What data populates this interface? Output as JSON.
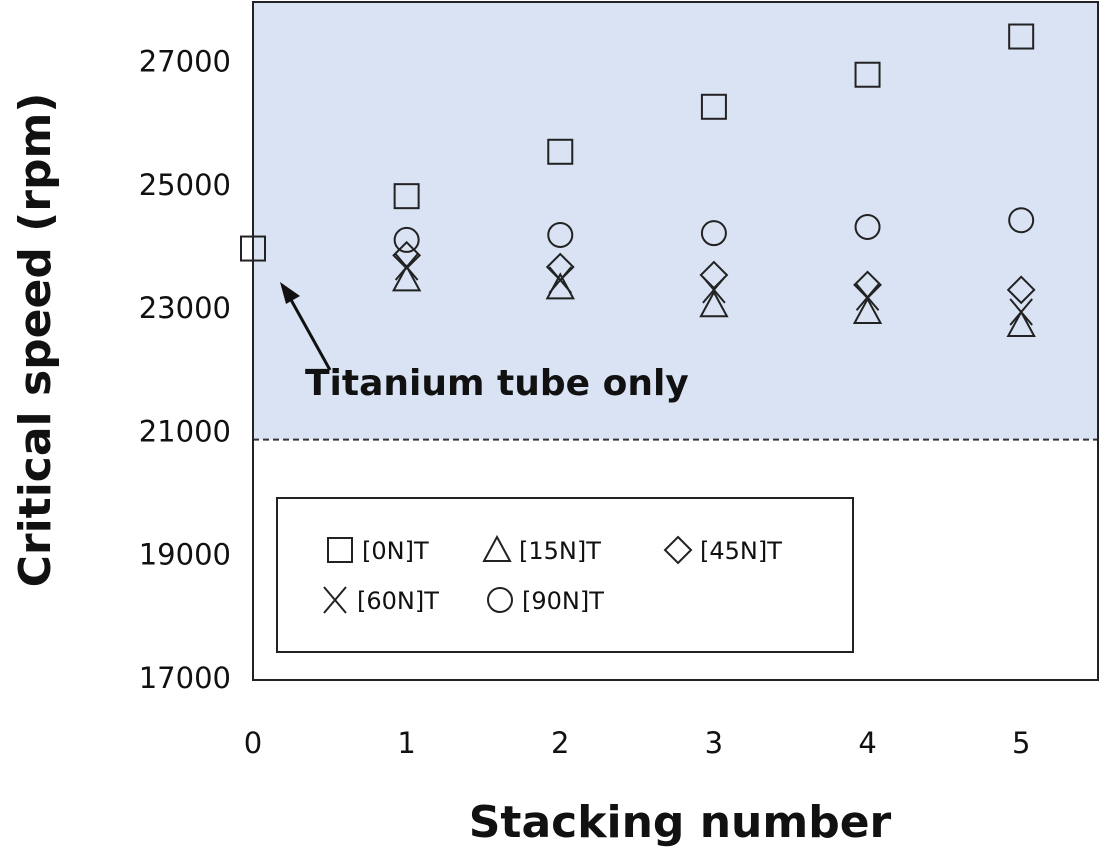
{
  "chart_data": {
    "type": "scatter",
    "xlabel": "Stacking number",
    "ylabel": "Critical speed (rpm)",
    "annotation": "Titanium tube only",
    "xlim": [
      0,
      5.5
    ],
    "ylim": [
      17000,
      28000
    ],
    "xticks": [
      0,
      1,
      2,
      3,
      4,
      5
    ],
    "yticks": [
      17000,
      19000,
      21000,
      23000,
      25000,
      27000
    ],
    "threshold": 20900,
    "shade_color": "#dae3f3",
    "series": [
      {
        "name": "[0N]T",
        "marker": "square",
        "color": "#222222",
        "x": [
          0,
          1,
          2,
          3,
          4,
          5
        ],
        "values": [
          24000,
          24850,
          25570,
          26300,
          26820,
          27440
        ]
      },
      {
        "name": "[15N]T",
        "marker": "triangle",
        "color": "#222222",
        "x": [
          1,
          2,
          3,
          4,
          5
        ],
        "values": [
          23500,
          23370,
          23080,
          22970,
          22760
        ]
      },
      {
        "name": "[45N]T",
        "marker": "diamond",
        "color": "#222222",
        "x": [
          1,
          2,
          3,
          4,
          5
        ],
        "values": [
          23890,
          23700,
          23570,
          23410,
          23330
        ]
      },
      {
        "name": "[60N]T",
        "marker": "x",
        "color": "#222222",
        "x": [
          1,
          2,
          3,
          4,
          5
        ],
        "values": [
          23700,
          23490,
          23330,
          23210,
          22970
        ]
      },
      {
        "name": "[90N]T",
        "marker": "circle",
        "color": "#222222",
        "x": [
          1,
          2,
          3,
          4,
          5
        ],
        "values": [
          24140,
          24220,
          24250,
          24350,
          24460
        ]
      }
    ]
  }
}
